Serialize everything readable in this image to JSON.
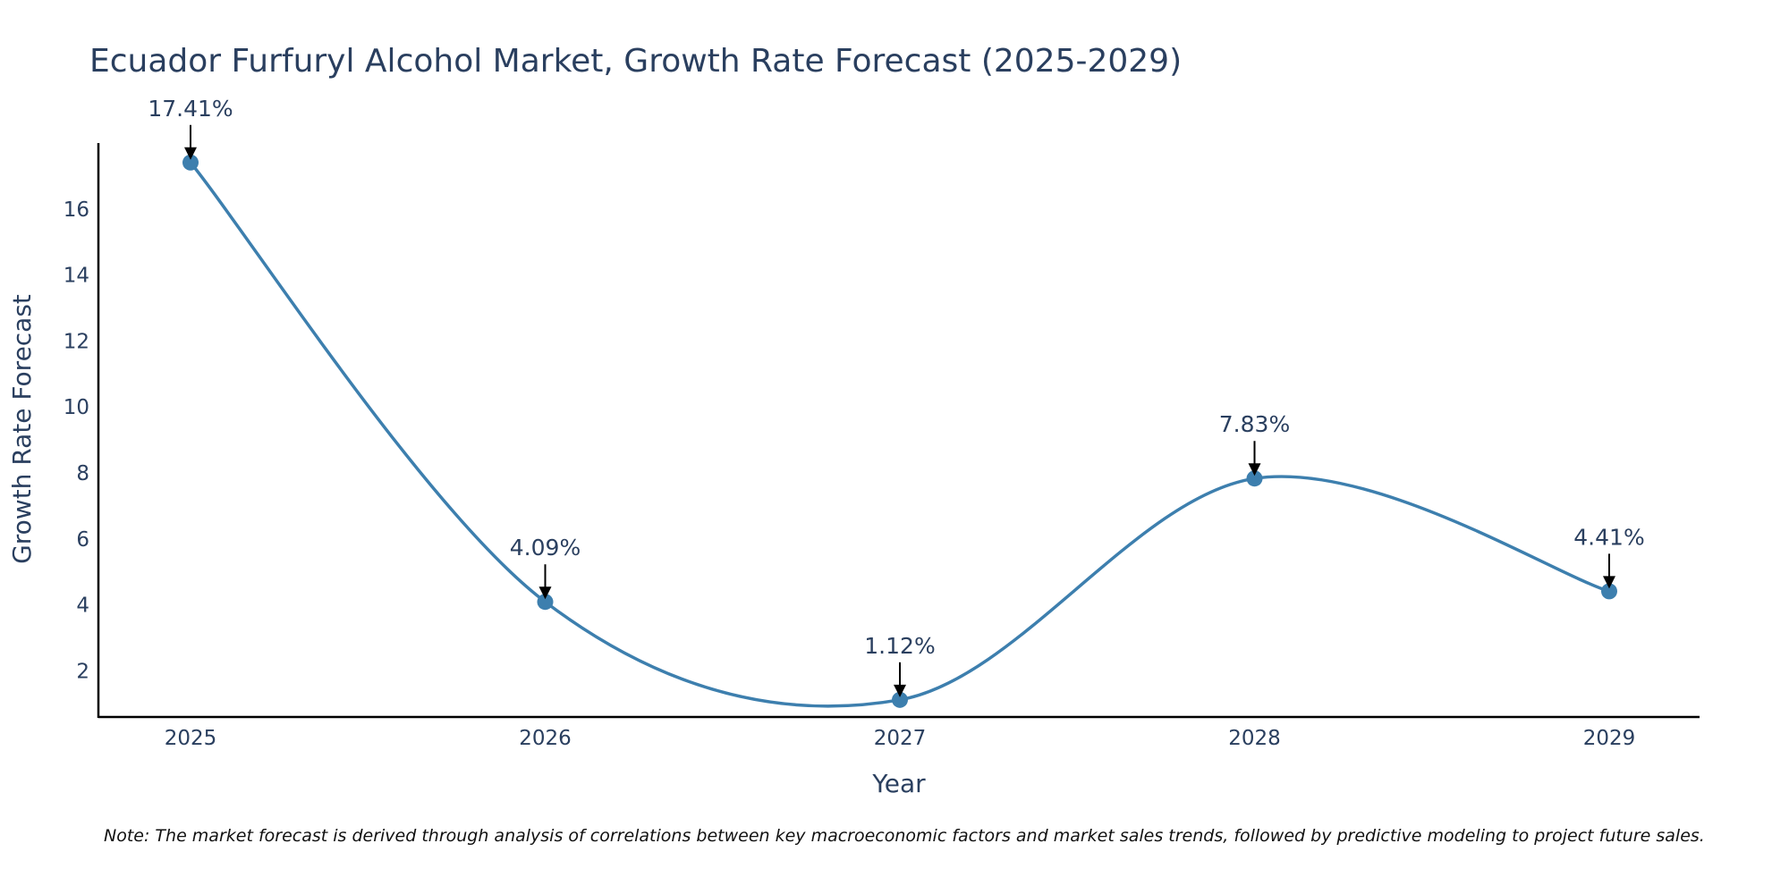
{
  "chart_data": {
    "type": "line",
    "title": "Ecuador Furfuryl Alcohol Market, Growth Rate Forecast (2025-2029)",
    "xlabel": "Year",
    "ylabel": "Growth Rate Forecast",
    "categories": [
      "2025",
      "2026",
      "2027",
      "2028",
      "2029"
    ],
    "series": [
      {
        "name": "Growth Rate Forecast",
        "values": [
          17.41,
          4.09,
          1.12,
          7.83,
          4.41
        ]
      }
    ],
    "data_labels": [
      "17.41%",
      "4.09%",
      "1.12%",
      "7.83%",
      "4.41%"
    ],
    "y_ticks": [
      2,
      4,
      6,
      8,
      10,
      12,
      14,
      16
    ],
    "y_tick_labels": [
      "2",
      "4",
      "6",
      "8",
      "10",
      "12",
      "14",
      "16"
    ],
    "ylim": [
      0.6,
      18.0
    ],
    "grid": false,
    "line_color": "#3d7fae",
    "marker_color": "#3d7fae",
    "note": "Note: The market forecast is derived through analysis of correlations between key macroeconomic factors and market sales trends, followed by predictive modeling to project future sales."
  }
}
